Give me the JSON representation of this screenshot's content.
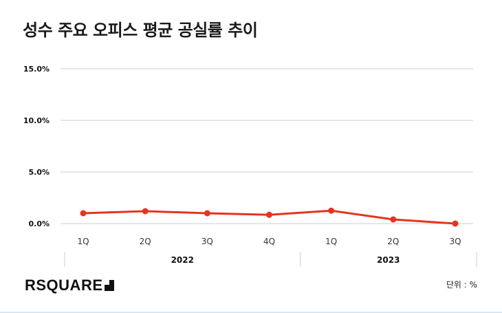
{
  "title": "성수 주요 오피스 평균 공실률 추이",
  "unit_label": "단위 :  %",
  "logo_text": "RSQUARE",
  "colors": {
    "line": "#e5341f",
    "grid": "#cccccc",
    "text": "#111111"
  },
  "chart_data": {
    "type": "line",
    "title": "성수 주요 오피스 평균 공실률 추이",
    "categories": [
      "1Q",
      "2Q",
      "3Q",
      "4Q",
      "1Q",
      "2Q",
      "3Q"
    ],
    "groups": [
      {
        "label": "2022",
        "count": 4
      },
      {
        "label": "2023",
        "count": 3
      }
    ],
    "series": [
      {
        "values": [
          1.0,
          1.2,
          1.0,
          0.85,
          1.25,
          0.4,
          0.0
        ]
      }
    ],
    "y_ticks": [
      "0.0%",
      "5.0%",
      "10.0%",
      "15.0%"
    ],
    "y_tick_values": [
      0,
      5,
      10,
      15
    ],
    "ylim": [
      0,
      15
    ],
    "grid": true,
    "legend": "none"
  }
}
